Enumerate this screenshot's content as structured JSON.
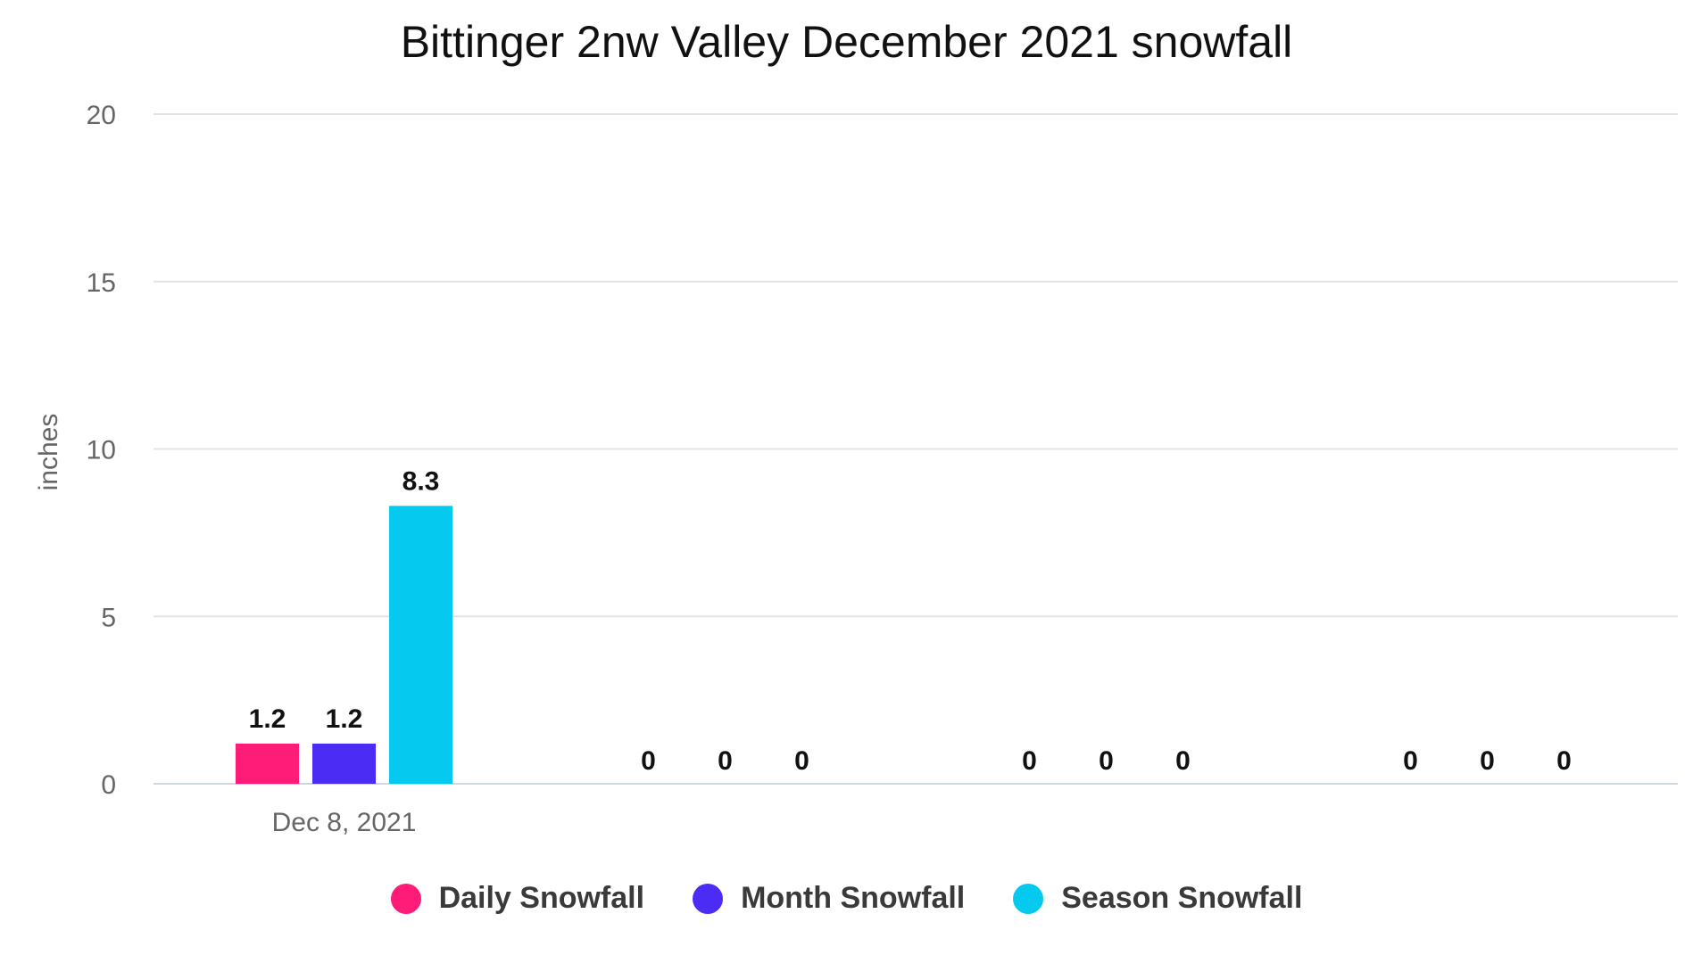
{
  "chart_data": {
    "type": "bar",
    "title": "Bittinger 2nw Valley December 2021 snowfall",
    "ylabel": "inches",
    "xlabel": "",
    "ylim": [
      0,
      20
    ],
    "yticks": [
      0,
      5,
      10,
      15,
      20
    ],
    "categories": [
      "Dec 8, 2021",
      "",
      "",
      ""
    ],
    "series": [
      {
        "name": "Daily Snowfall",
        "color": "#ff1b78",
        "values": [
          1.2,
          0,
          0,
          0
        ]
      },
      {
        "name": "Month Snowfall",
        "color": "#4a2cf5",
        "values": [
          1.2,
          0,
          0,
          0
        ]
      },
      {
        "name": "Season Snowfall",
        "color": "#06c9f0",
        "values": [
          8.3,
          0,
          0,
          0
        ]
      }
    ],
    "data_labels": true,
    "grid": true,
    "legend": "bottom-center"
  }
}
